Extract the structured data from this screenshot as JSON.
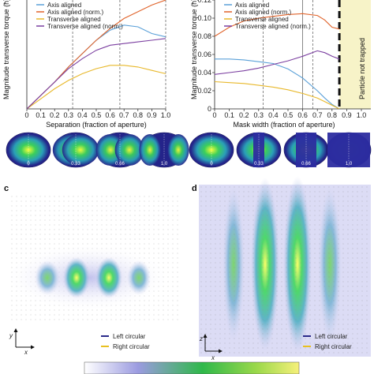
{
  "figure": {
    "panel_labels": [
      "c",
      "d"
    ],
    "row1_left_caption": "Separation (fraction of aperture)",
    "row1_right_caption": "Mask width (fraction of aperture)",
    "c_legend": [
      "Left circular",
      "Right circular"
    ],
    "d_legend": [
      "Left circular",
      "Right circular"
    ],
    "c_axes": {
      "x": "x",
      "y": "y"
    },
    "d_axes": {
      "x": "x",
      "z": "z"
    },
    "colors": {
      "axis": "#5aa0d8",
      "axis_norm": "#e0632a",
      "transverse": "#e8b82a",
      "transverse_norm": "#7b3fa0",
      "left_circular": "#2a2a8a",
      "right_circular": "#e8c020",
      "trap_region": "#f7f3c8"
    },
    "thumbnails_left": [
      "0",
      "0.33",
      "0.66",
      "1.0"
    ],
    "thumbnails_right": [
      "0",
      "0.33",
      "0.66",
      "1.0"
    ]
  },
  "chart_data": [
    {
      "type": "line",
      "title": "",
      "xlabel": "",
      "ylabel": "Magnitude transverse torque (ħ)",
      "xlim": [
        0,
        1.0
      ],
      "x_ticks": [
        "0",
        "0.1",
        "0.2",
        "0.3",
        "0.4",
        "0.5",
        "0.6",
        "0.7",
        "0.8",
        "0.9",
        "1.0"
      ],
      "ylim": [
        0,
        0.065
      ],
      "y_ticks": [],
      "legend_position": "top-left",
      "vlines": [
        0.33,
        0.67,
        1.0
      ],
      "series": [
        {
          "name": "Axis aligned",
          "color_key": "axis",
          "x": [
            0,
            0.1,
            0.2,
            0.3,
            0.4,
            0.5,
            0.6,
            0.7,
            0.8,
            0.9,
            1.0
          ],
          "y": [
            0.0,
            0.008,
            0.016,
            0.025,
            0.033,
            0.041,
            0.047,
            0.05,
            0.049,
            0.045,
            0.043
          ]
        },
        {
          "name": "Axis aligned (norm.)",
          "color_key": "axis_norm",
          "x": [
            0,
            0.1,
            0.2,
            0.3,
            0.4,
            0.5,
            0.6,
            0.7,
            0.8,
            0.9,
            1.0
          ],
          "y": [
            0.0,
            0.008,
            0.016,
            0.025,
            0.033,
            0.041,
            0.048,
            0.054,
            0.058,
            0.062,
            0.065
          ]
        },
        {
          "name": "Transverse aligned",
          "color_key": "transverse",
          "x": [
            0,
            0.1,
            0.2,
            0.3,
            0.4,
            0.5,
            0.6,
            0.7,
            0.8,
            0.9,
            1.0
          ],
          "y": [
            0.0,
            0.006,
            0.012,
            0.017,
            0.021,
            0.024,
            0.026,
            0.026,
            0.025,
            0.023,
            0.021
          ]
        },
        {
          "name": "Transverse aligned (norm.)",
          "color_key": "transverse_norm",
          "x": [
            0,
            0.1,
            0.2,
            0.3,
            0.4,
            0.5,
            0.6,
            0.7,
            0.8,
            0.9,
            1.0
          ],
          "y": [
            0.0,
            0.008,
            0.016,
            0.024,
            0.03,
            0.035,
            0.038,
            0.039,
            0.04,
            0.041,
            0.042
          ]
        }
      ]
    },
    {
      "type": "line",
      "title": "",
      "xlabel": "",
      "ylabel": "Magnitude transverse torque (ħ)",
      "xlim": [
        0,
        1.0
      ],
      "x_ticks": [
        "0",
        "0.1",
        "0.2",
        "0.3",
        "0.4",
        "0.5",
        "0.6",
        "0.7",
        "0.8",
        "0.9",
        "1.0"
      ],
      "ylim": [
        0,
        0.12
      ],
      "y_ticks": [
        "0",
        "0.02",
        "0.04",
        "0.06",
        "0.08",
        "0.10",
        "0.12"
      ],
      "legend_position": "top-left",
      "vlines": [
        0.33,
        0.6,
        0.67
      ],
      "annotation": "Particle not trapped",
      "trap_from": 0.85,
      "series": [
        {
          "name": "Axis aligned",
          "color_key": "axis",
          "x": [
            0,
            0.1,
            0.2,
            0.3,
            0.4,
            0.5,
            0.6,
            0.7,
            0.75,
            0.8,
            0.85
          ],
          "y": [
            0.055,
            0.055,
            0.054,
            0.052,
            0.05,
            0.044,
            0.034,
            0.02,
            0.012,
            0.005,
            0.0
          ]
        },
        {
          "name": "Axis aligned (norm.)",
          "color_key": "axis_norm",
          "x": [
            0,
            0.1,
            0.2,
            0.3,
            0.4,
            0.5,
            0.6,
            0.7,
            0.75,
            0.8,
            0.85
          ],
          "y": [
            0.08,
            0.09,
            0.097,
            0.1,
            0.102,
            0.104,
            0.105,
            0.103,
            0.098,
            0.09,
            0.088
          ]
        },
        {
          "name": "Transverse aligned",
          "color_key": "transverse",
          "x": [
            0,
            0.1,
            0.2,
            0.3,
            0.4,
            0.5,
            0.6,
            0.7,
            0.75,
            0.8,
            0.85
          ],
          "y": [
            0.03,
            0.029,
            0.028,
            0.026,
            0.024,
            0.021,
            0.017,
            0.012,
            0.008,
            0.004,
            0.0
          ]
        },
        {
          "name": "Transverse aligned (norm.)",
          "color_key": "transverse_norm",
          "x": [
            0,
            0.1,
            0.2,
            0.3,
            0.4,
            0.5,
            0.6,
            0.7,
            0.75,
            0.8,
            0.85
          ],
          "y": [
            0.038,
            0.04,
            0.042,
            0.045,
            0.049,
            0.053,
            0.058,
            0.064,
            0.062,
            0.058,
            0.055
          ]
        }
      ]
    }
  ]
}
